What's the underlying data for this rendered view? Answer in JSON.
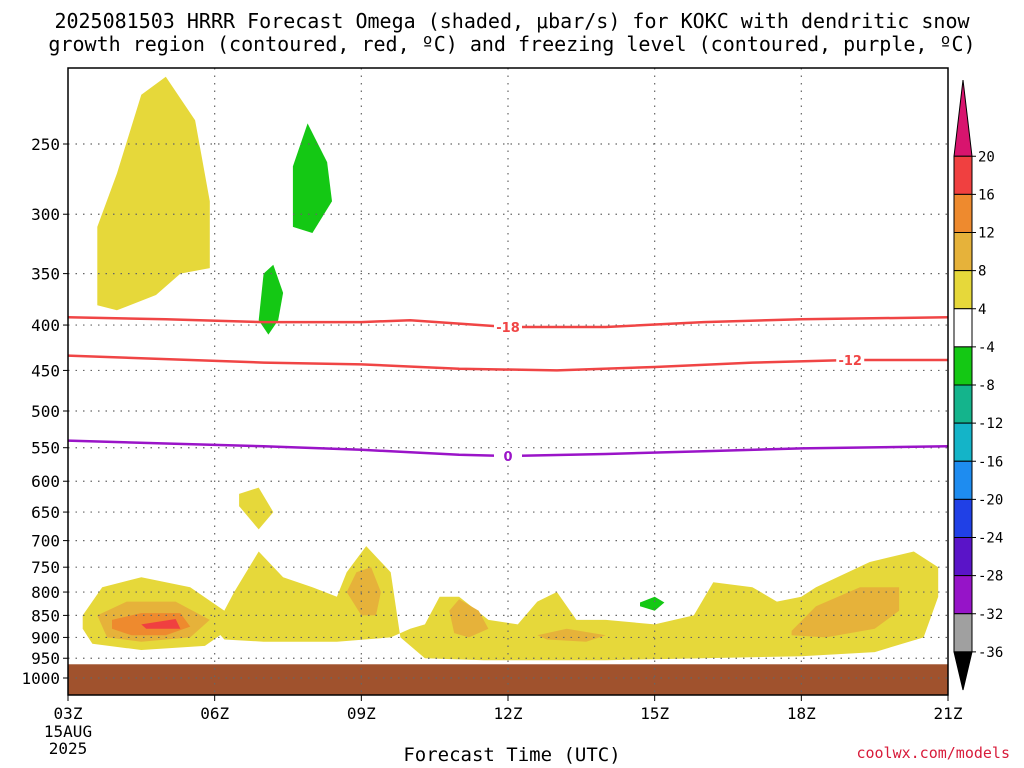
{
  "title_line1": "2025081503 HRRR Forecast Omega (shaded, μbar/s) for KOKC with dendritic snow",
  "title_line2": "growth region (contoured, red, ºC) and freezing level (contoured, purple, ºC)",
  "credit": "coolwx.com/models",
  "chart_data": {
    "type": "area",
    "title": "2025081503 HRRR Forecast Omega (shaded, μbar/s) for KOKC with dendritic snow growth region (contoured, red, ºC) and freezing level (contoured, purple, ºC)",
    "xlabel": "Forecast Time (UTC)",
    "ylabel": "",
    "x_ticks": [
      "03Z",
      "06Z",
      "09Z",
      "12Z",
      "15Z",
      "18Z",
      "21Z"
    ],
    "x_tick_hours": [
      3,
      6,
      9,
      12,
      15,
      18,
      21
    ],
    "x_sublabels": [
      "15AUG",
      "2025"
    ],
    "xlim": [
      3,
      21
    ],
    "y_ticks": [
      250,
      300,
      350,
      400,
      450,
      500,
      550,
      600,
      650,
      700,
      750,
      800,
      850,
      900,
      950,
      1000
    ],
    "ylim": [
      200,
      1050
    ],
    "y_scale": "log",
    "grid": true,
    "ground_pressure": 965,
    "colorbar": {
      "labels": [
        "20",
        "16",
        "12",
        "8",
        "4",
        "-4",
        "-8",
        "-12",
        "-16",
        "-20",
        "-24",
        "-28",
        "-32",
        "-36"
      ],
      "colors": [
        "#d8146e",
        "#f04040",
        "#ee8a2e",
        "#e6b23a",
        "#e6d83a",
        "#ffffff",
        "#14c814",
        "#14b48c",
        "#14b4c8",
        "#1e8cf0",
        "#2040e6",
        "#5a14c8",
        "#9614c8",
        "#a0a0a0",
        "#000000"
      ]
    },
    "series": [
      {
        "name": "-18",
        "color": "#f04545",
        "kind": "contour",
        "x": [
          3,
          5,
          7,
          9,
          10,
          12,
          14,
          16,
          18,
          21
        ],
        "y": [
          392,
          394,
          397,
          397,
          395,
          402,
          402,
          397,
          394,
          392
        ]
      },
      {
        "name": "-12",
        "color": "#f04545",
        "kind": "contour",
        "x": [
          3,
          5,
          7,
          9,
          11,
          13,
          15,
          17,
          19,
          21
        ],
        "y": [
          433,
          437,
          441,
          443,
          448,
          450,
          446,
          441,
          438,
          438
        ]
      },
      {
        "name": "0",
        "color": "#9a14c8",
        "kind": "contour",
        "x": [
          3,
          5,
          7,
          9,
          11,
          12,
          14,
          16,
          18,
          21
        ],
        "y": [
          540,
          544,
          548,
          553,
          560,
          562,
          559,
          555,
          551,
          548
        ]
      }
    ],
    "regions": [
      {
        "level": "4 to 8",
        "color": "#e6d83a",
        "points": [
          [
            3.6,
            380
          ],
          [
            3.6,
            310
          ],
          [
            4,
            270
          ],
          [
            4.5,
            220
          ],
          [
            5.0,
            210
          ],
          [
            5.6,
            235
          ],
          [
            5.9,
            290
          ],
          [
            5.9,
            345
          ],
          [
            5.3,
            350
          ],
          [
            4.8,
            370
          ],
          [
            4.0,
            385
          ],
          [
            3.6,
            380
          ]
        ]
      },
      {
        "level": "-4 to -8",
        "color": "#14c814",
        "points": [
          [
            7.6,
            310
          ],
          [
            7.6,
            265
          ],
          [
            7.9,
            237
          ],
          [
            8.3,
            262
          ],
          [
            8.4,
            290
          ],
          [
            8.0,
            315
          ],
          [
            7.6,
            310
          ]
        ]
      },
      {
        "level": "-4 to -8",
        "color": "#14c814",
        "points": [
          [
            6.9,
            395
          ],
          [
            7.0,
            350
          ],
          [
            7.2,
            342
          ],
          [
            7.4,
            368
          ],
          [
            7.3,
            395
          ],
          [
            7.1,
            410
          ],
          [
            6.9,
            395
          ]
        ]
      },
      {
        "level": "4 to 8",
        "color": "#e6d83a",
        "points": [
          [
            3.3,
            850
          ],
          [
            3.7,
            790
          ],
          [
            4.5,
            770
          ],
          [
            5.5,
            790
          ],
          [
            6.2,
            840
          ],
          [
            6.3,
            880
          ],
          [
            5.8,
            920
          ],
          [
            4.5,
            930
          ],
          [
            3.5,
            915
          ],
          [
            3.3,
            880
          ],
          [
            3.3,
            850
          ]
        ]
      },
      {
        "level": "8 to 12",
        "color": "#e6b23a",
        "points": [
          [
            3.6,
            850
          ],
          [
            4.2,
            820
          ],
          [
            5.2,
            820
          ],
          [
            5.9,
            860
          ],
          [
            5.5,
            900
          ],
          [
            4.5,
            910
          ],
          [
            3.8,
            900
          ],
          [
            3.6,
            850
          ]
        ]
      },
      {
        "level": "12 to 16",
        "color": "#ee8a2e",
        "points": [
          [
            3.9,
            860
          ],
          [
            4.5,
            845
          ],
          [
            5.3,
            845
          ],
          [
            5.5,
            875
          ],
          [
            5.0,
            895
          ],
          [
            4.3,
            895
          ],
          [
            3.9,
            880
          ],
          [
            3.9,
            860
          ]
        ]
      },
      {
        "level": "16 to 20",
        "color": "#f04040",
        "points": [
          [
            4.5,
            870
          ],
          [
            5.2,
            858
          ],
          [
            5.3,
            880
          ],
          [
            4.6,
            880
          ],
          [
            4.5,
            870
          ]
        ]
      },
      {
        "level": "4 to 8",
        "color": "#e6d83a",
        "points": [
          [
            6.5,
            620
          ],
          [
            6.9,
            610
          ],
          [
            7.2,
            650
          ],
          [
            6.9,
            680
          ],
          [
            6.5,
            640
          ],
          [
            6.5,
            620
          ]
        ]
      },
      {
        "level": "4 to 8",
        "color": "#e6d83a",
        "points": [
          [
            6.0,
            880
          ],
          [
            6.4,
            800
          ],
          [
            6.9,
            720
          ],
          [
            7.4,
            770
          ],
          [
            8.0,
            790
          ],
          [
            8.5,
            810
          ],
          [
            8.7,
            760
          ],
          [
            9.1,
            710
          ],
          [
            9.6,
            760
          ],
          [
            9.8,
            900
          ],
          [
            10.3,
            950
          ],
          [
            11.5,
            955
          ],
          [
            12.5,
            955
          ],
          [
            14.0,
            955
          ],
          [
            16.0,
            950
          ],
          [
            18.0,
            945
          ],
          [
            19.5,
            935
          ],
          [
            20.5,
            900
          ],
          [
            20.8,
            810
          ],
          [
            20.8,
            750
          ],
          [
            20.3,
            720
          ],
          [
            19.4,
            740
          ],
          [
            18.3,
            790
          ],
          [
            18.0,
            810
          ],
          [
            17.5,
            820
          ],
          [
            17.0,
            790
          ],
          [
            16.2,
            780
          ],
          [
            15.8,
            850
          ],
          [
            15.0,
            870
          ],
          [
            14.0,
            860
          ],
          [
            13.4,
            860
          ],
          [
            13.0,
            800
          ],
          [
            12.6,
            820
          ],
          [
            12.2,
            870
          ],
          [
            11.6,
            860
          ],
          [
            11.0,
            810
          ],
          [
            10.6,
            810
          ],
          [
            10.3,
            870
          ],
          [
            10.0,
            880
          ],
          [
            9.6,
            900
          ],
          [
            8.5,
            910
          ],
          [
            7.0,
            910
          ],
          [
            6.2,
            905
          ],
          [
            6.0,
            880
          ]
        ]
      },
      {
        "level": "8 to 12",
        "color": "#e6b23a",
        "points": [
          [
            8.7,
            800
          ],
          [
            8.9,
            760
          ],
          [
            9.2,
            750
          ],
          [
            9.4,
            800
          ],
          [
            9.3,
            850
          ],
          [
            9.0,
            850
          ],
          [
            8.7,
            800
          ]
        ]
      },
      {
        "level": "8 to 12",
        "color": "#e6b23a",
        "points": [
          [
            10.8,
            840
          ],
          [
            11.0,
            815
          ],
          [
            11.4,
            840
          ],
          [
            11.6,
            880
          ],
          [
            11.2,
            900
          ],
          [
            10.9,
            890
          ],
          [
            10.8,
            840
          ]
        ]
      },
      {
        "level": "8 to 12",
        "color": "#e6b23a",
        "points": [
          [
            12.6,
            895
          ],
          [
            13.2,
            880
          ],
          [
            14.0,
            895
          ],
          [
            13.6,
            910
          ],
          [
            12.8,
            905
          ],
          [
            12.6,
            895
          ]
        ]
      },
      {
        "level": "8 to 12",
        "color": "#e6b23a",
        "points": [
          [
            17.8,
            885
          ],
          [
            18.3,
            830
          ],
          [
            19.2,
            790
          ],
          [
            20.0,
            790
          ],
          [
            20.0,
            840
          ],
          [
            19.5,
            880
          ],
          [
            18.5,
            900
          ],
          [
            17.8,
            895
          ],
          [
            17.8,
            885
          ]
        ]
      },
      {
        "level": "-4 to -8",
        "color": "#14c814",
        "points": [
          [
            14.7,
            822
          ],
          [
            15.0,
            810
          ],
          [
            15.2,
            822
          ],
          [
            15.0,
            840
          ],
          [
            14.7,
            830
          ],
          [
            14.7,
            822
          ]
        ]
      }
    ]
  }
}
